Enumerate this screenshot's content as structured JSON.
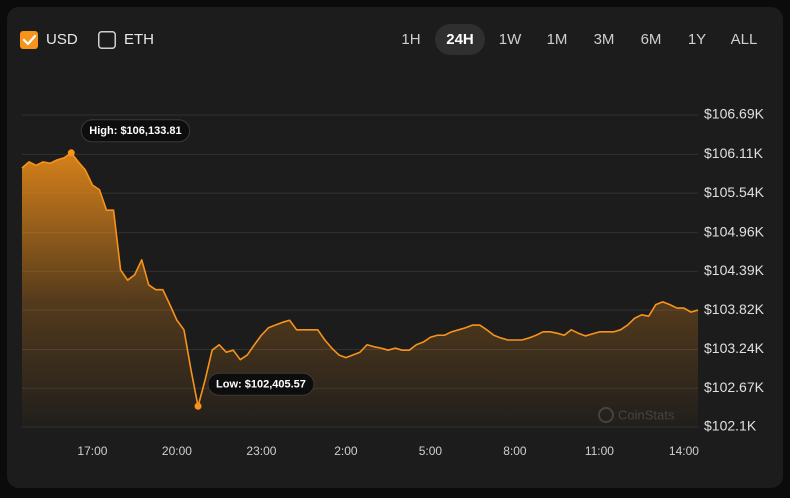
{
  "controls": {
    "currencies": [
      {
        "label": "USD",
        "checked": true
      },
      {
        "label": "ETH",
        "checked": false
      }
    ],
    "ranges": [
      "1H",
      "24H",
      "1W",
      "1M",
      "3M",
      "6M",
      "1Y",
      "ALL"
    ],
    "selected_range": "24H"
  },
  "chart_data": {
    "type": "area",
    "color": "#f7931a",
    "grid": true,
    "watermark": "CoinStats",
    "x": [
      14.5,
      14.75,
      15,
      15.25,
      15.5,
      15.75,
      16,
      16.25,
      16.5,
      16.75,
      17,
      17.25,
      17.5,
      17.75,
      18,
      18.25,
      18.5,
      18.75,
      19,
      19.25,
      19.5,
      19.75,
      20,
      20.25,
      20.5,
      20.75,
      21,
      21.25,
      21.5,
      21.75,
      22,
      22.25,
      22.5,
      22.75,
      23,
      23.25,
      23.5,
      23.75,
      24,
      24.25,
      24.5,
      24.75,
      25,
      25.25,
      25.5,
      25.75,
      26,
      26.25,
      26.5,
      26.75,
      27,
      27.25,
      27.5,
      27.75,
      28,
      28.25,
      28.5,
      28.75,
      29,
      29.25,
      29.5,
      29.75,
      30,
      30.25,
      30.5,
      30.75,
      31,
      31.25,
      31.5,
      31.75,
      32,
      32.25,
      32.5,
      32.75,
      33,
      33.25,
      33.5,
      33.75,
      34,
      34.25,
      34.5,
      34.75,
      35,
      35.25,
      35.5,
      35.75,
      36,
      36.25,
      36.5,
      36.75,
      37,
      37.25,
      37.5,
      37.75,
      38,
      38.25,
      38.5
    ],
    "values": [
      105910,
      106000,
      105950,
      106000,
      105980,
      106030,
      106060,
      106133.81,
      106000,
      105880,
      105660,
      105590,
      105290,
      105290,
      104410,
      104260,
      104340,
      104560,
      104190,
      104120,
      104120,
      103900,
      103670,
      103530,
      102940,
      102405.57,
      102790,
      103230,
      103310,
      103200,
      103230,
      103090,
      103160,
      103310,
      103450,
      103560,
      103600,
      103640,
      103670,
      103530,
      103530,
      103530,
      103530,
      103380,
      103260,
      103160,
      103120,
      103160,
      103200,
      103310,
      103280,
      103260,
      103230,
      103260,
      103230,
      103230,
      103310,
      103350,
      103420,
      103450,
      103450,
      103500,
      103530,
      103560,
      103600,
      103600,
      103530,
      103450,
      103410,
      103380,
      103380,
      103380,
      103410,
      103450,
      103500,
      103500,
      103480,
      103450,
      103530,
      103480,
      103440,
      103470,
      103500,
      103500,
      103500,
      103530,
      103600,
      103700,
      103750,
      103730,
      103900,
      103940,
      103900,
      103850,
      103850,
      103790,
      103820
    ],
    "xlim": [
      14.5,
      38.5
    ],
    "xticks": [
      {
        "value": 17,
        "label": "17:00"
      },
      {
        "value": 20,
        "label": "20:00"
      },
      {
        "value": 23,
        "label": "23:00"
      },
      {
        "value": 26,
        "label": "2:00"
      },
      {
        "value": 29,
        "label": "5:00"
      },
      {
        "value": 32,
        "label": "8:00"
      },
      {
        "value": 35,
        "label": "11:00"
      },
      {
        "value": 38,
        "label": "14:00"
      }
    ],
    "ylim": [
      102100,
      106690
    ],
    "yticks": [
      {
        "value": 102100,
        "label": "$102.1K"
      },
      {
        "value": 102670,
        "label": "$102.67K"
      },
      {
        "value": 103240,
        "label": "$103.24K"
      },
      {
        "value": 103820,
        "label": "$103.82K"
      },
      {
        "value": 104390,
        "label": "$104.39K"
      },
      {
        "value": 104960,
        "label": "$104.96K"
      },
      {
        "value": 105540,
        "label": "$105.54K"
      },
      {
        "value": 106110,
        "label": "$106.11K"
      },
      {
        "value": 106690,
        "label": "$106.69K"
      }
    ],
    "annotations": [
      {
        "text": "High: $106,133.81",
        "x": 16.25,
        "y": 106133.81
      },
      {
        "text": "Low: $102,405.57",
        "x": 20.75,
        "y": 102405.57
      }
    ]
  }
}
